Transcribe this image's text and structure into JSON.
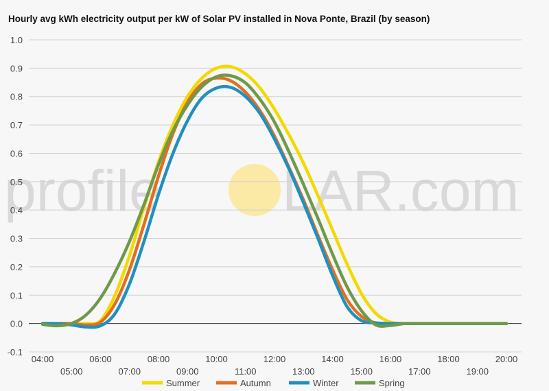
{
  "chart_data": {
    "type": "line",
    "title": "Hourly avg kWh electricity output per kW of Solar PV installed in Nova Ponte, Brazil (by season)",
    "xlabel": "",
    "ylabel": "",
    "x": [
      "04:00",
      "04:30",
      "05:00",
      "05:30",
      "06:00",
      "06:30",
      "07:00",
      "07:30",
      "08:00",
      "08:30",
      "09:00",
      "09:30",
      "10:00",
      "10:30",
      "11:00",
      "11:30",
      "12:00",
      "12:30",
      "13:00",
      "13:30",
      "14:00",
      "14:30",
      "15:00",
      "15:30",
      "16:00",
      "16:30",
      "17:00",
      "17:30",
      "18:00",
      "18:30",
      "19:00",
      "19:30",
      "20:00"
    ],
    "x_ticks_upper": [
      "04:00",
      "06:00",
      "08:00",
      "10:00",
      "12:00",
      "14:00",
      "16:00",
      "18:00",
      "20:00"
    ],
    "x_ticks_lower": [
      "05:00",
      "07:00",
      "09:00",
      "11:00",
      "13:00",
      "15:00",
      "17:00",
      "19:00"
    ],
    "ylim": [
      -0.1,
      1.0
    ],
    "y_ticks": [
      "-0.1",
      "0.0",
      "0.1",
      "0.2",
      "0.3",
      "0.4",
      "0.5",
      "0.6",
      "0.7",
      "0.8",
      "0.9",
      "1.0"
    ],
    "grid": true,
    "legend": "bottom",
    "series": [
      {
        "name": "Summer",
        "color": "#f5d800",
        "values": [
          0,
          0,
          0,
          0,
          0.01,
          0.1,
          0.24,
          0.41,
          0.57,
          0.7,
          0.8,
          0.865,
          0.9,
          0.905,
          0.88,
          0.83,
          0.755,
          0.665,
          0.565,
          0.45,
          0.33,
          0.21,
          0.105,
          0.035,
          0.005,
          0,
          0,
          0,
          0,
          0,
          0,
          0,
          0
        ]
      },
      {
        "name": "Autumn",
        "color": "#e07020",
        "values": [
          0,
          0,
          0,
          -0.005,
          0.005,
          0.07,
          0.19,
          0.35,
          0.52,
          0.67,
          0.78,
          0.845,
          0.865,
          0.855,
          0.815,
          0.75,
          0.66,
          0.55,
          0.435,
          0.31,
          0.19,
          0.085,
          0.025,
          0.002,
          0,
          0,
          0,
          0,
          0,
          0,
          0,
          0,
          0
        ]
      },
      {
        "name": "Winter",
        "color": "#2090c0",
        "values": [
          0,
          0,
          -0.005,
          -0.012,
          -0.008,
          0.035,
          0.14,
          0.29,
          0.455,
          0.6,
          0.715,
          0.795,
          0.83,
          0.832,
          0.8,
          0.74,
          0.65,
          0.545,
          0.425,
          0.3,
          0.17,
          0.06,
          0.01,
          0.002,
          0,
          0,
          0,
          0,
          0,
          0,
          0,
          0,
          0
        ]
      },
      {
        "name": "Spring",
        "color": "#6e9a4a",
        "values": [
          -0.003,
          -0.008,
          0,
          0.03,
          0.09,
          0.18,
          0.29,
          0.42,
          0.56,
          0.68,
          0.77,
          0.835,
          0.87,
          0.873,
          0.848,
          0.79,
          0.71,
          0.605,
          0.49,
          0.37,
          0.245,
          0.13,
          0.045,
          -0.005,
          -0.007,
          0,
          0,
          0,
          0,
          0,
          0,
          0,
          0
        ]
      }
    ]
  },
  "watermark": {
    "left": "profile",
    "right": "LAR.com",
    "sun_color": "#fbe9a6"
  }
}
